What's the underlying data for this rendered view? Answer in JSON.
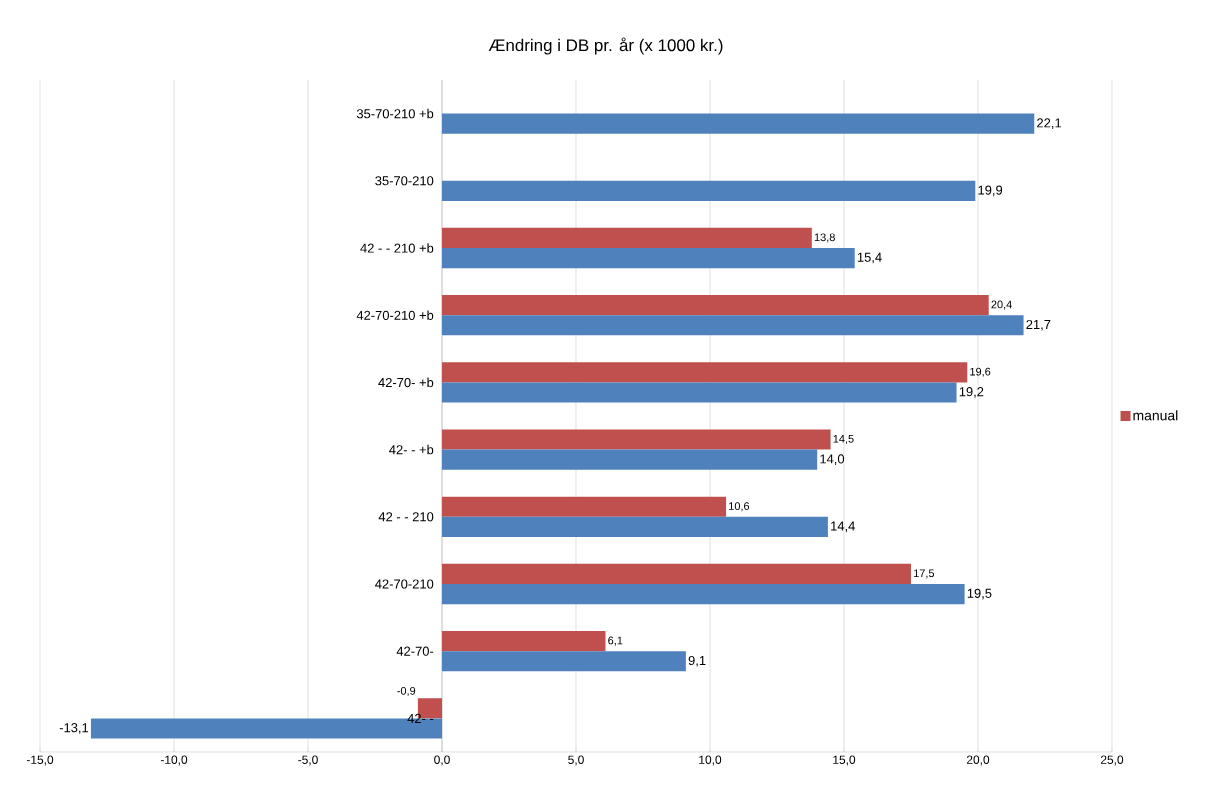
{
  "chart_data": {
    "type": "bar",
    "orientation": "horizontal",
    "title": "Ændring i DB pr.  år (x 1000 kr.)",
    "categories": [
      "35-70-210 +b",
      "35-70-210",
      "42 - - 210 +b",
      "42-70-210 +b",
      "42-70- +b",
      "42- -  +b",
      "42 - - 210",
      "42-70-210",
      "42-70-",
      "42- -"
    ],
    "series": [
      {
        "name": "manual",
        "color": "#c0504d",
        "values": [
          null,
          null,
          13.8,
          20.4,
          19.6,
          14.5,
          10.6,
          17.5,
          6.1,
          -0.9
        ],
        "value_labels": [
          null,
          null,
          "13,8",
          "20,4",
          "19,6",
          "14,5",
          "10,6",
          "17,5",
          "6,1",
          "-0,9"
        ]
      },
      {
        "color": "#4f81bd",
        "values": [
          22.1,
          19.9,
          15.4,
          21.7,
          19.2,
          14.0,
          14.4,
          19.5,
          9.1,
          -13.1
        ],
        "value_labels": [
          "22,1",
          "19,9",
          "15,4",
          "21,7",
          "19,2",
          "14,0",
          "14,4",
          "19,5",
          "9,1",
          "-13,1"
        ]
      }
    ],
    "xlim": [
      -15,
      25
    ],
    "xticks": [
      {
        "value": -15,
        "label": "-15,0"
      },
      {
        "value": -10,
        "label": "-10,0"
      },
      {
        "value": -5,
        "label": "-5,0"
      },
      {
        "value": 0,
        "label": "0,0"
      },
      {
        "value": 5,
        "label": "5,0"
      },
      {
        "value": 10,
        "label": "10,0"
      },
      {
        "value": 15,
        "label": "15,0"
      },
      {
        "value": 20,
        "label": "20,0"
      },
      {
        "value": 25,
        "label": "25,0"
      }
    ],
    "grid": "x",
    "legend": "right"
  }
}
